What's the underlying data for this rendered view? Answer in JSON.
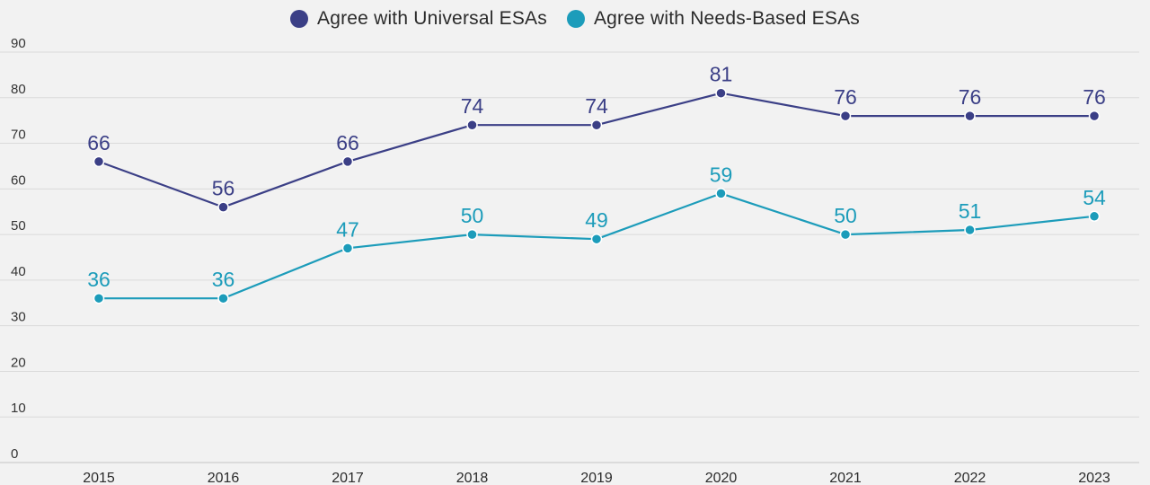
{
  "chart_data": {
    "type": "line",
    "title": "",
    "xlabel": "",
    "ylabel": "",
    "x": [
      "2015",
      "2016",
      "2017",
      "2018",
      "2019",
      "2020",
      "2021",
      "2022",
      "2023"
    ],
    "ylim": [
      0,
      90
    ],
    "yticks": [
      "0",
      "10",
      "20",
      "30",
      "40",
      "50",
      "60",
      "70",
      "80",
      "90"
    ],
    "grid": true,
    "legend_position": "top-center",
    "series": [
      {
        "name": "Agree with Universal ESAs",
        "color": "#3b3f86",
        "values": [
          66,
          56,
          66,
          74,
          74,
          81,
          76,
          76,
          76
        ]
      },
      {
        "name": "Agree with Needs-Based ESAs",
        "color": "#1c9cba",
        "values": [
          36,
          36,
          47,
          50,
          49,
          59,
          50,
          51,
          54
        ]
      }
    ]
  }
}
